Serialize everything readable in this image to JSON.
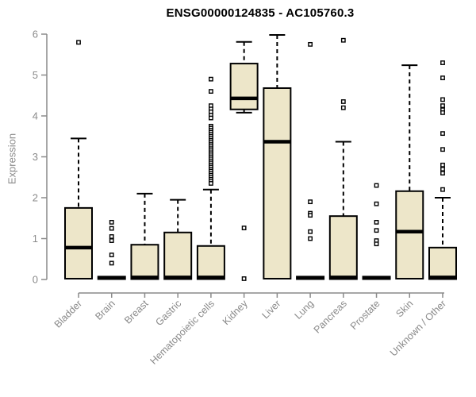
{
  "chart_data": {
    "type": "boxplot",
    "title": "ENSG00000124835 - AC105760.3",
    "ylabel": "Expression",
    "xlabel": "",
    "ylim": [
      0,
      6
    ],
    "yticks": [
      0,
      1,
      2,
      3,
      4,
      5,
      6
    ],
    "grid": false,
    "legend": "none",
    "categories": [
      "Bladder",
      "Brain",
      "Breast",
      "Gastric",
      "Hematopoietic cells",
      "Kidney",
      "Liver",
      "Lung",
      "Pancreas",
      "Prostate",
      "Skin",
      "Unknown / Other"
    ],
    "boxes": [
      {
        "category": "Bladder",
        "whisker_low": 0.02,
        "q1": 0.02,
        "median": 0.78,
        "q3": 1.75,
        "whisker_high": 3.45,
        "outliers": [
          5.8
        ]
      },
      {
        "category": "Brain",
        "whisker_low": 0.01,
        "q1": 0.01,
        "median": 0.04,
        "q3": 0.07,
        "whisker_high": 0.07,
        "outliers": [
          1.4,
          1.25,
          1.05,
          0.95,
          0.6,
          0.4
        ]
      },
      {
        "category": "Breast",
        "whisker_low": 0.01,
        "q1": 0.01,
        "median": 0.05,
        "q3": 0.85,
        "whisker_high": 2.1,
        "outliers": []
      },
      {
        "category": "Gastric",
        "whisker_low": 0.01,
        "q1": 0.01,
        "median": 0.05,
        "q3": 1.15,
        "whisker_high": 1.95,
        "outliers": []
      },
      {
        "category": "Hematopoietic cells",
        "whisker_low": 0.01,
        "q1": 0.01,
        "median": 0.05,
        "q3": 0.82,
        "whisker_high": 2.2,
        "outliers": [
          4.9,
          4.6,
          4.25,
          4.17,
          4.1,
          4.02,
          3.95,
          3.75,
          3.7,
          3.65,
          3.6,
          3.55,
          3.5,
          3.45,
          3.4,
          3.35,
          3.3,
          3.25,
          3.2,
          3.15,
          3.1,
          3.05,
          3.0,
          2.95,
          2.9,
          2.85,
          2.8,
          2.75,
          2.7,
          2.65,
          2.6,
          2.55,
          2.5,
          2.45,
          2.4,
          2.35
        ]
      },
      {
        "category": "Kidney",
        "whisker_low": 4.08,
        "q1": 4.16,
        "median": 4.43,
        "q3": 5.28,
        "whisker_high": 5.81,
        "outliers": [
          1.26,
          0.02
        ]
      },
      {
        "category": "Liver",
        "whisker_low": 0.02,
        "q1": 0.02,
        "median": 3.37,
        "q3": 4.68,
        "whisker_high": 5.98,
        "outliers": []
      },
      {
        "category": "Lung",
        "whisker_low": 0.01,
        "q1": 0.01,
        "median": 0.04,
        "q3": 0.07,
        "whisker_high": 0.07,
        "outliers": [
          5.75,
          1.9,
          1.62,
          1.57,
          1.17,
          1.0
        ]
      },
      {
        "category": "Pancreas",
        "whisker_low": 0.01,
        "q1": 0.01,
        "median": 0.05,
        "q3": 1.55,
        "whisker_high": 3.37,
        "outliers": [
          5.85,
          4.35,
          4.2
        ]
      },
      {
        "category": "Prostate",
        "whisker_low": 0.01,
        "q1": 0.01,
        "median": 0.04,
        "q3": 0.07,
        "whisker_high": 0.07,
        "outliers": [
          2.3,
          1.85,
          1.4,
          1.2,
          0.95,
          0.87
        ]
      },
      {
        "category": "Skin",
        "whisker_low": 0.02,
        "q1": 0.02,
        "median": 1.17,
        "q3": 2.16,
        "whisker_high": 5.24,
        "outliers": []
      },
      {
        "category": "Unknown / Other",
        "whisker_low": 0.01,
        "q1": 0.01,
        "median": 0.05,
        "q3": 0.78,
        "whisker_high": 2.0,
        "outliers": [
          5.3,
          4.93,
          4.4,
          4.25,
          4.15,
          4.08,
          3.57,
          3.18,
          2.8,
          2.7,
          2.6,
          2.2
        ]
      }
    ],
    "colors": {
      "box_fill": "#ede6c9",
      "box_border": "#000000",
      "median": "#000000",
      "whisker": "#000000",
      "outlier_border": "#000000",
      "outlier_fill": "#ffffff",
      "axis": "#8a8a8a",
      "tick_label": "#8a8a8a",
      "title": "#000000",
      "background": "#ffffff"
    }
  }
}
